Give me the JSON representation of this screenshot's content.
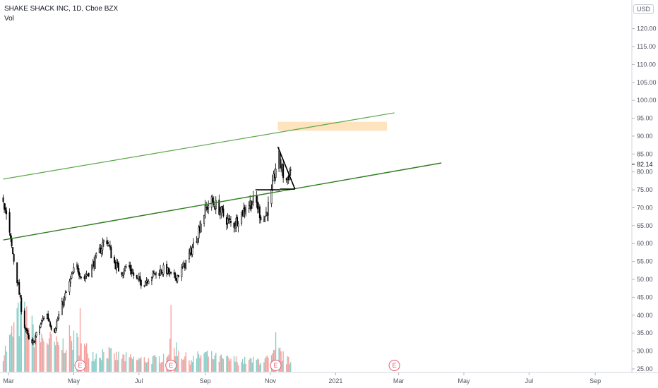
{
  "legend": {
    "symbol": "SHAKE SHACK INC, 1D, Cboe BZX",
    "volume": "Vol"
  },
  "currency": "USD",
  "chart_data": {
    "type": "candlestick",
    "symbol": "SHAKE SHACK INC",
    "interval": "1D",
    "exchange": "Cboe BZX",
    "ylim": [
      24,
      128
    ],
    "y_ticks": [
      "120.00",
      "115.00",
      "110.00",
      "105.00",
      "100.00",
      "95.00",
      "90.00",
      "85.00",
      "80.00",
      "75.00",
      "70.00",
      "65.00",
      "60.00",
      "55.00",
      "50.00",
      "45.00",
      "40.00",
      "35.00",
      "30.00",
      "25.00"
    ],
    "last_price": "82.14",
    "x_ticks": [
      {
        "label": "Mar",
        "date": "2020-03-01"
      },
      {
        "label": "May",
        "date": "2020-05-01"
      },
      {
        "label": "Jul",
        "date": "2020-07-01"
      },
      {
        "label": "Sep",
        "date": "2020-09-01"
      },
      {
        "label": "Nov",
        "date": "2020-11-01"
      },
      {
        "label": "2021",
        "date": "2021-01-01"
      },
      {
        "label": "Mar",
        "date": "2021-03-01"
      },
      {
        "label": "May",
        "date": "2021-05-01"
      },
      {
        "label": "Jul",
        "date": "2021-07-01"
      },
      {
        "label": "Sep",
        "date": "2021-09-01"
      }
    ],
    "price_path": [
      [
        "2020-02-25",
        73
      ],
      [
        "2020-03-01",
        64
      ],
      [
        "2020-03-08",
        52
      ],
      [
        "2020-03-15",
        38
      ],
      [
        "2020-03-22",
        31
      ],
      [
        "2020-03-29",
        36
      ],
      [
        "2020-04-05",
        41
      ],
      [
        "2020-04-12",
        35
      ],
      [
        "2020-04-19",
        42
      ],
      [
        "2020-04-26",
        48
      ],
      [
        "2020-05-03",
        54
      ],
      [
        "2020-05-10",
        50
      ],
      [
        "2020-05-17",
        53
      ],
      [
        "2020-05-24",
        57
      ],
      [
        "2020-05-31",
        62
      ],
      [
        "2020-06-07",
        55
      ],
      [
        "2020-06-14",
        52
      ],
      [
        "2020-06-21",
        54
      ],
      [
        "2020-06-28",
        50
      ],
      [
        "2020-07-05",
        49
      ],
      [
        "2020-07-12",
        51
      ],
      [
        "2020-07-19",
        52
      ],
      [
        "2020-07-26",
        53
      ],
      [
        "2020-08-02",
        50
      ],
      [
        "2020-08-09",
        52
      ],
      [
        "2020-08-16",
        56
      ],
      [
        "2020-08-23",
        61
      ],
      [
        "2020-08-30",
        68
      ],
      [
        "2020-09-06",
        72
      ],
      [
        "2020-09-13",
        70
      ],
      [
        "2020-09-20",
        67
      ],
      [
        "2020-09-27",
        65
      ],
      [
        "2020-10-04",
        68
      ],
      [
        "2020-10-11",
        71
      ],
      [
        "2020-10-18",
        72
      ],
      [
        "2020-10-25",
        66
      ],
      [
        "2020-11-01",
        72
      ],
      [
        "2020-11-08",
        85
      ],
      [
        "2020-11-15",
        77
      ],
      [
        "2020-11-22",
        82.14
      ]
    ],
    "volume_path": [
      [
        "2020-02-25",
        0.3
      ],
      [
        "2020-03-01",
        0.45
      ],
      [
        "2020-03-08",
        0.8
      ],
      [
        "2020-03-15",
        0.95
      ],
      [
        "2020-03-22",
        0.7
      ],
      [
        "2020-03-29",
        0.55
      ],
      [
        "2020-04-05",
        0.55
      ],
      [
        "2020-04-12",
        0.45
      ],
      [
        "2020-04-19",
        0.4
      ],
      [
        "2020-04-26",
        0.55
      ],
      [
        "2020-05-03",
        0.5
      ],
      [
        "2020-05-10",
        0.4
      ],
      [
        "2020-05-17",
        0.3
      ],
      [
        "2020-05-24",
        0.28
      ],
      [
        "2020-05-31",
        0.35
      ],
      [
        "2020-06-07",
        0.25
      ],
      [
        "2020-06-14",
        0.25
      ],
      [
        "2020-06-21",
        0.22
      ],
      [
        "2020-06-28",
        0.2
      ],
      [
        "2020-07-05",
        0.2
      ],
      [
        "2020-07-12",
        0.2
      ],
      [
        "2020-07-19",
        0.2
      ],
      [
        "2020-07-26",
        0.3
      ],
      [
        "2020-08-02",
        0.45
      ],
      [
        "2020-08-09",
        0.3
      ],
      [
        "2020-08-16",
        0.2
      ],
      [
        "2020-08-23",
        0.22
      ],
      [
        "2020-08-30",
        0.3
      ],
      [
        "2020-09-06",
        0.25
      ],
      [
        "2020-09-13",
        0.22
      ],
      [
        "2020-09-20",
        0.2
      ],
      [
        "2020-09-27",
        0.2
      ],
      [
        "2020-10-04",
        0.18
      ],
      [
        "2020-10-11",
        0.18
      ],
      [
        "2020-10-18",
        0.18
      ],
      [
        "2020-10-25",
        0.2
      ],
      [
        "2020-11-01",
        0.2
      ],
      [
        "2020-11-08",
        0.35
      ],
      [
        "2020-11-15",
        0.2
      ],
      [
        "2020-11-22",
        0.15
      ]
    ],
    "volume_spikes": [
      {
        "date": "2020-03-09",
        "value": 1.0,
        "up": true
      },
      {
        "date": "2020-05-07",
        "value": 1.0,
        "up": false
      },
      {
        "date": "2020-07-31",
        "value": 1.05,
        "up": false
      },
      {
        "date": "2020-11-06",
        "value": 0.62,
        "up": true
      }
    ],
    "earnings": [
      {
        "date": "2020-05-07",
        "label": "E"
      },
      {
        "date": "2020-07-31",
        "label": "E"
      },
      {
        "date": "2020-11-06",
        "label": "E"
      },
      {
        "date": "2021-02-25",
        "label": "E"
      }
    ],
    "drawings": {
      "channel_upper": {
        "p1": [
          "2020-02-25",
          78
        ],
        "p2": [
          "2021-02-25",
          96.5
        ],
        "color": "#5ba84a"
      },
      "channel_lower": {
        "p1": [
          "2020-02-25",
          61
        ],
        "p2": [
          "2021-04-10",
          82.5
        ],
        "color": "#2e7d1e"
      },
      "resistance_zone": {
        "x1": "2020-11-08",
        "x2": "2021-02-18",
        "y1": 91.5,
        "y2": 94,
        "color": "#fde3be"
      },
      "pennant_upper": {
        "p1": [
          "2020-11-08",
          87
        ],
        "p2": [
          "2020-11-24",
          75.2
        ]
      },
      "pennant_lower": {
        "p1": [
          "2020-11-10",
          75.2
        ],
        "p2": [
          "2020-11-24",
          75.2
        ]
      },
      "breakout_level": {
        "p1": [
          "2020-10-18",
          75
        ],
        "p2": [
          "2020-11-10",
          75
        ]
      }
    },
    "colors": {
      "up": "#26a69a",
      "down": "#ef5350",
      "candle": "#000000",
      "earnings": "#e4586b"
    }
  }
}
